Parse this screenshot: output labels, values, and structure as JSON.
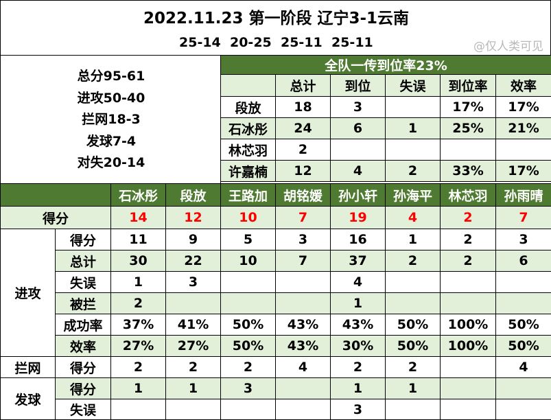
{
  "header": {
    "title": "2022.11.23 第一阶段 辽宁3-1云南",
    "sets": "25-14  20-25  25-11  25-11",
    "watermark": "@仅人类可见"
  },
  "summary": {
    "lines": [
      "总分95-61",
      "进攻50-40",
      "拦网18-3",
      "发球7-4",
      "对失20-14"
    ]
  },
  "pass_table": {
    "title": "全队一传到位率23%",
    "columns": [
      "总计",
      "到位",
      "失误",
      "到位率",
      "效率"
    ],
    "rows": [
      {
        "name": "段放",
        "cells": [
          "18",
          "3",
          "",
          "17%",
          "17%"
        ]
      },
      {
        "name": "石冰彤",
        "cells": [
          "24",
          "6",
          "1",
          "25%",
          "21%"
        ]
      },
      {
        "name": "林芯羽",
        "cells": [
          "2",
          "",
          "",
          "",
          ""
        ]
      },
      {
        "name": "许嘉楠",
        "cells": [
          "12",
          "4",
          "2",
          "33%",
          "17%"
        ]
      }
    ]
  },
  "stats": {
    "players": [
      "石冰彤",
      "段放",
      "王路加",
      "胡铭媛",
      "孙小轩",
      "孙海平",
      "林芯羽",
      "孙雨晴"
    ],
    "score": {
      "label": "得分",
      "values": [
        "14",
        "12",
        "10",
        "7",
        "19",
        "4",
        "2",
        "7"
      ]
    },
    "attack": {
      "group": "进攻",
      "rows": [
        {
          "label": "得分",
          "values": [
            "11",
            "9",
            "5",
            "3",
            "16",
            "1",
            "2",
            "3"
          ]
        },
        {
          "label": "总计",
          "values": [
            "30",
            "22",
            "10",
            "7",
            "37",
            "2",
            "2",
            "6"
          ]
        },
        {
          "label": "失误",
          "values": [
            "1",
            "3",
            "",
            "",
            "4",
            "",
            "",
            ""
          ]
        },
        {
          "label": "被拦",
          "values": [
            "2",
            "",
            "",
            "",
            "1",
            "",
            "",
            ""
          ]
        },
        {
          "label": "成功率",
          "values": [
            "37%",
            "41%",
            "50%",
            "43%",
            "43%",
            "50%",
            "100%",
            "50%"
          ]
        },
        {
          "label": "效率",
          "values": [
            "27%",
            "27%",
            "50%",
            "43%",
            "30%",
            "50%",
            "100%",
            "50%"
          ]
        }
      ]
    },
    "block": {
      "group": "拦网",
      "rows": [
        {
          "label": "得分",
          "values": [
            "2",
            "2",
            "2",
            "4",
            "2",
            "2",
            "",
            "4"
          ]
        }
      ]
    },
    "serve": {
      "group": "发球",
      "rows": [
        {
          "label": "得分",
          "values": [
            "1",
            "1",
            "3",
            "",
            "1",
            "1",
            "",
            ""
          ]
        },
        {
          "label": "失误",
          "values": [
            "",
            "",
            "",
            "",
            "3",
            "",
            "",
            ""
          ]
        }
      ]
    }
  },
  "colors": {
    "header_green": "#4e7b31",
    "light_green": "#e2efd9",
    "score_red": "#ff0000",
    "border": "#000000"
  }
}
